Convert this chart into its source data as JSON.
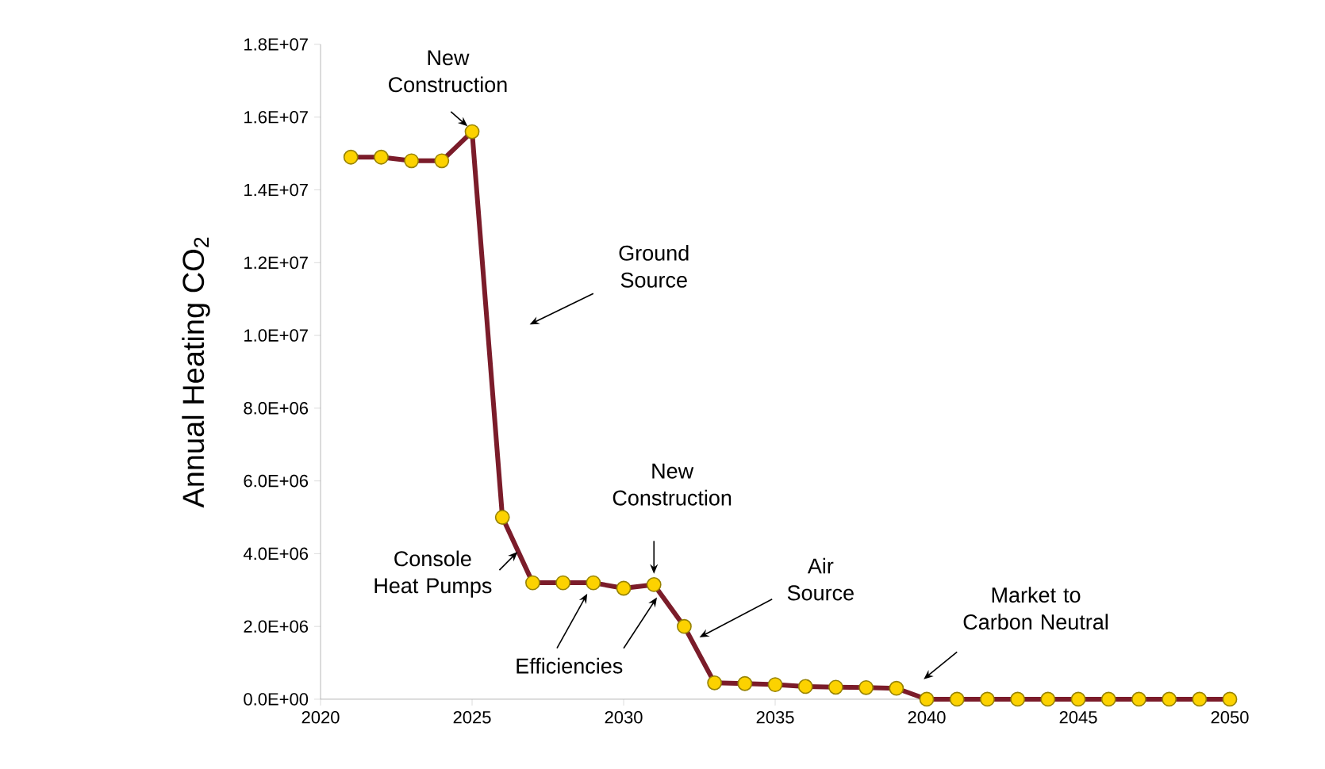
{
  "chart_data": {
    "type": "line",
    "ylabel": "Annual Heating CO$_{2}$",
    "x": [
      2021,
      2022,
      2023,
      2024,
      2025,
      2026,
      2027,
      2028,
      2029,
      2030,
      2031,
      2032,
      2033,
      2034,
      2035,
      2036,
      2037,
      2038,
      2039,
      2040,
      2041,
      2042,
      2043,
      2044,
      2045,
      2046,
      2047,
      2048,
      2049,
      2050
    ],
    "series": [
      {
        "color": "#7b1c2a",
        "values": [
          14900000,
          14900000,
          14800000,
          14800000,
          15600000,
          5000000,
          3200000,
          3200000,
          3200000,
          3050000,
          3150000,
          2000000,
          450000,
          430000,
          400000,
          350000,
          330000,
          320000,
          300000,
          0,
          0,
          0,
          0,
          0,
          0,
          0,
          0,
          0,
          0,
          0
        ]
      }
    ],
    "xlim": [
      2020,
      2050
    ],
    "xticks": [
      2020,
      2025,
      2030,
      2035,
      2040,
      2045,
      2050
    ],
    "ylim": [
      0,
      18000000
    ],
    "yticks": [
      {
        "value": 0,
        "label": "0.0E+00"
      },
      {
        "value": 2000000,
        "label": "2.0E+06"
      },
      {
        "value": 4000000,
        "label": "4.0E+06"
      },
      {
        "value": 6000000,
        "label": "6.0E+06"
      },
      {
        "value": 8000000,
        "label": "8.0E+06"
      },
      {
        "value": 10000000,
        "label": "1.0E+07"
      },
      {
        "value": 12000000,
        "label": "1.2E+07"
      },
      {
        "value": 14000000,
        "label": "1.4E+07"
      },
      {
        "value": 16000000,
        "label": "1.6E+07"
      },
      {
        "value": 18000000,
        "label": "1.8E+07"
      }
    ],
    "grid": false,
    "marker": "circle",
    "line_style": "solid",
    "annotations": [
      "New Construction",
      "Ground Source",
      "Console Heat Pumps",
      "Efficiencies",
      "New Construction",
      "Air Source",
      "Market to Carbon Neutral"
    ]
  }
}
